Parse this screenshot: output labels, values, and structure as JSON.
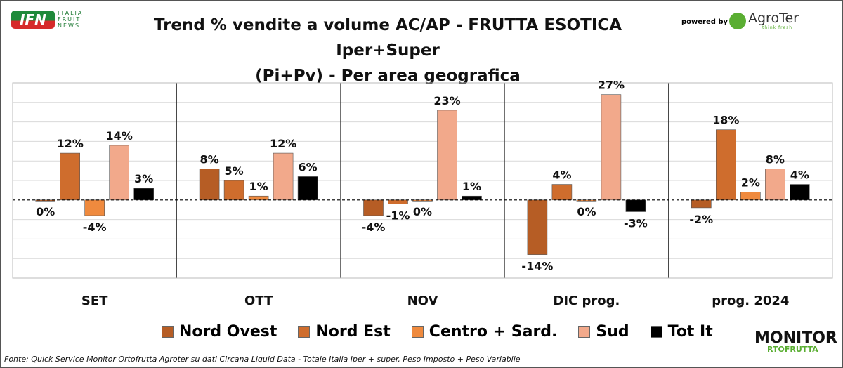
{
  "header": {
    "title_line1": "Trend % vendite a volume AC/AP - FRUTTA ESOTICA  Iper+Super",
    "title_line2": "(Pi+Pv) - Per area geografica",
    "logo_ifn": "IFN",
    "logo_ifn_words": [
      "ITALIA",
      "FRUIT",
      "NEWS"
    ],
    "powered_by": "powered by",
    "agroter": "AgroTer",
    "agroter_tagline": "think fresh"
  },
  "footer": {
    "source": "Fonte: Quick Service Monitor Ortofrutta Agroter su dati Circana Liquid Data - Totale Italia Iper + super, Peso Imposto + Peso Variabile",
    "monitor_logo": "MONITOR",
    "monitor_sub": "RTOFRUTTA"
  },
  "chart_data": {
    "type": "bar",
    "title": "Trend % vendite a volume AC/AP - FRUTTA ESOTICA Iper+Super (Pi+Pv) - Per area geografica",
    "categories": [
      "SET",
      "OTT",
      "NOV",
      "DIC prog.",
      "prog. 2024"
    ],
    "series": [
      {
        "name": "Nord Ovest",
        "color": "#b65d25",
        "values": [
          0,
          8,
          -4,
          -14,
          -2
        ]
      },
      {
        "name": "Nord Est",
        "color": "#cf6d2d",
        "values": [
          12,
          5,
          -1,
          4,
          18
        ]
      },
      {
        "name": "Centro + Sard.",
        "color": "#ef8a3e",
        "values": [
          -4,
          1,
          0,
          0,
          2
        ]
      },
      {
        "name": "Sud",
        "color": "#f2a98b",
        "values": [
          14,
          12,
          23,
          27,
          8
        ]
      },
      {
        "name": "Tot It",
        "color": "#000000",
        "values": [
          3,
          6,
          1,
          -3,
          4
        ]
      }
    ],
    "ylim": [
      -20,
      30
    ],
    "grid": true,
    "legend": "bottom",
    "value_suffix": "%"
  }
}
